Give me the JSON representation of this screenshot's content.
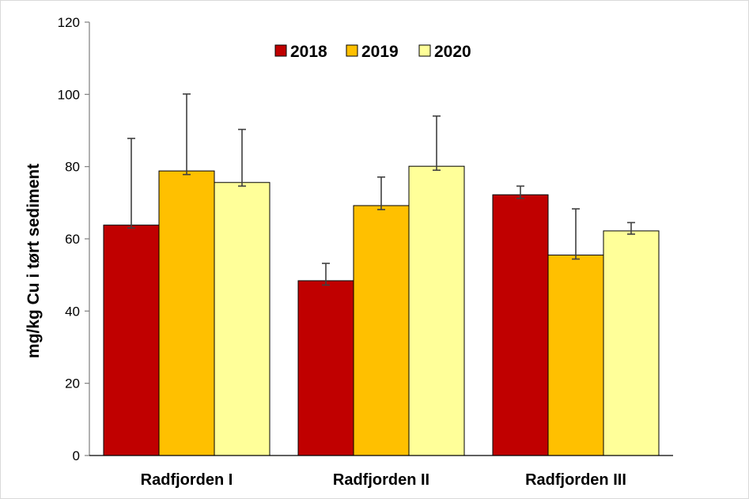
{
  "chart_data": {
    "type": "bar",
    "ylabel": "mg/kg Cu i tørt sediment",
    "ylim": [
      0,
      120
    ],
    "yticks": [
      0,
      20,
      40,
      60,
      80,
      100,
      120
    ],
    "categories": [
      "Radfjorden I",
      "Radfjorden II",
      "Radfjorden III"
    ],
    "grid": false,
    "legend_position": "top-center",
    "series": [
      {
        "name": "2018",
        "color": "#c00000",
        "values": [
          63.8,
          48.4,
          72.2
        ],
        "error_high": [
          87.8,
          53.2,
          74.6
        ],
        "error_low": [
          63.0,
          47.2,
          71.2
        ]
      },
      {
        "name": "2019",
        "color": "#ffc000",
        "values": [
          78.8,
          69.2,
          55.5
        ],
        "error_high": [
          100.1,
          77.1,
          68.3
        ],
        "error_low": [
          77.8,
          68.1,
          54.4
        ]
      },
      {
        "name": "2020",
        "color": "#ffff99",
        "values": [
          75.6,
          80.1,
          62.2
        ],
        "error_high": [
          90.3,
          94.0,
          64.5
        ],
        "error_low": [
          74.6,
          79.0,
          61.3
        ]
      }
    ]
  }
}
